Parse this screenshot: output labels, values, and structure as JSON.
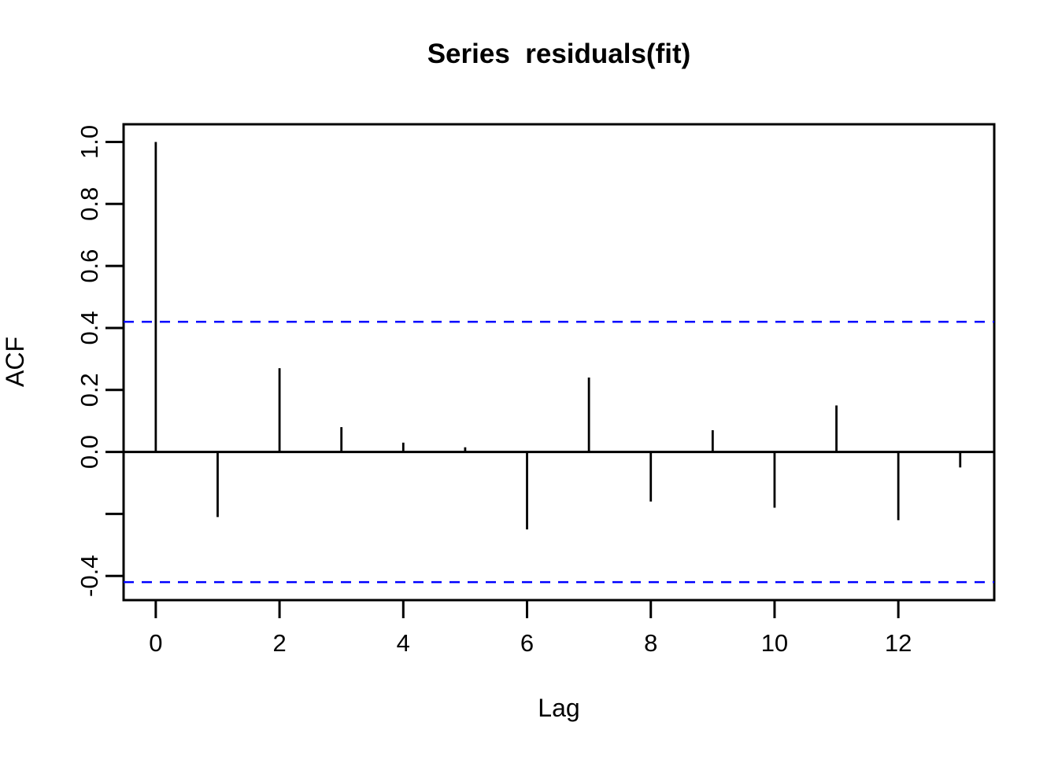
{
  "page": {
    "background": "#ffffff"
  },
  "chart_data": {
    "type": "bar",
    "subtype": "acf-stem-plot",
    "title": "Series  residuals(fit)",
    "xlabel": "Lag",
    "ylabel": "ACF",
    "x": [
      0,
      1,
      2,
      3,
      4,
      5,
      6,
      7,
      8,
      9,
      10,
      11,
      12,
      13
    ],
    "values": [
      1.0,
      -0.21,
      0.27,
      0.08,
      0.03,
      0.015,
      -0.25,
      0.24,
      -0.16,
      0.07,
      -0.18,
      0.15,
      -0.22,
      -0.05
    ],
    "confidence_lines": {
      "upper": 0.42,
      "lower": -0.42,
      "style": "dashed",
      "color": "#0000ff"
    },
    "xlim": [
      -0.52,
      13.55
    ],
    "ylim": [
      -0.478,
      1.057
    ],
    "x_ticks": [
      {
        "value": 0,
        "label": "0"
      },
      {
        "value": 2,
        "label": "2"
      },
      {
        "value": 4,
        "label": "4"
      },
      {
        "value": 6,
        "label": "6"
      },
      {
        "value": 8,
        "label": "8"
      },
      {
        "value": 10,
        "label": "10"
      },
      {
        "value": 12,
        "label": "12"
      }
    ],
    "y_ticks": [
      {
        "value": 1.0,
        "label": "1.0"
      },
      {
        "value": 0.8,
        "label": "0.8"
      },
      {
        "value": 0.6,
        "label": "0.6"
      },
      {
        "value": 0.4,
        "label": "0.4"
      },
      {
        "value": 0.2,
        "label": "0.2"
      },
      {
        "value": 0.0,
        "label": "0.0"
      },
      {
        "value": -0.2,
        "label": ""
      },
      {
        "value": -0.4,
        "label": "-0.4"
      }
    ],
    "grid": false,
    "legend": null,
    "colors": {
      "spike": "#000000",
      "axis": "#000000",
      "confidence": "#0000ff",
      "background": "#ffffff"
    }
  }
}
